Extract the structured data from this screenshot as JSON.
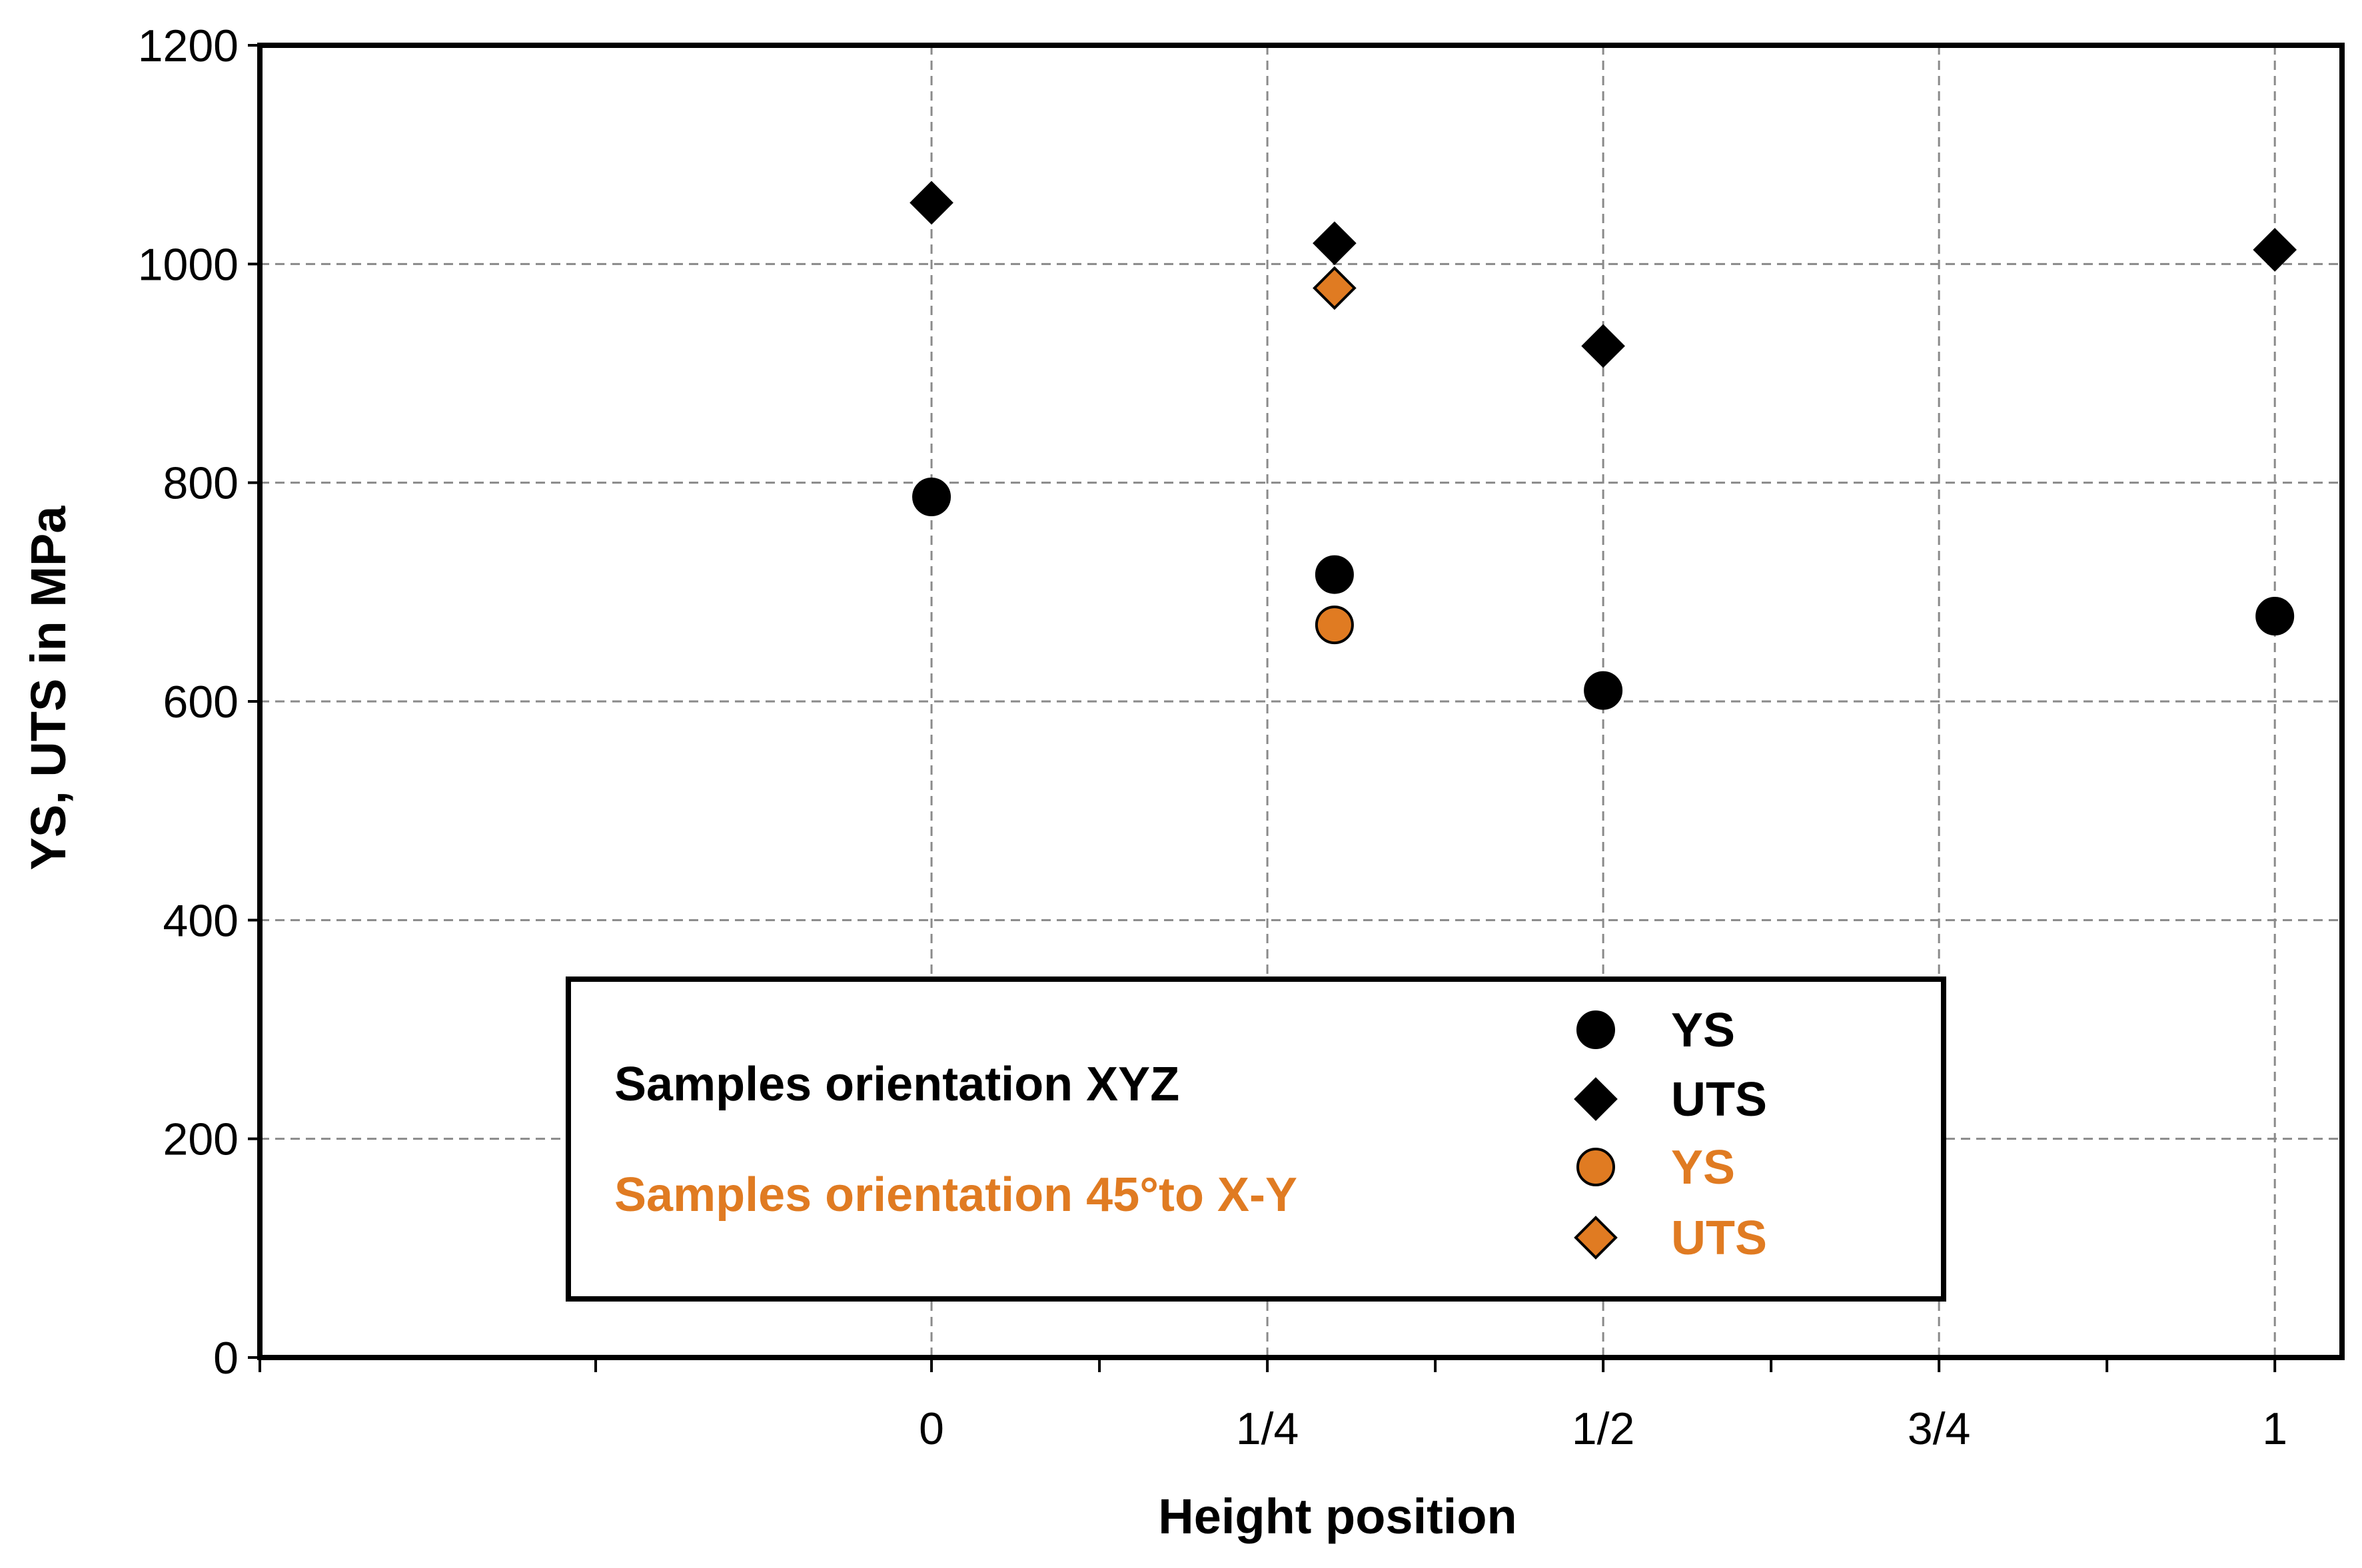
{
  "chart_data": {
    "type": "scatter",
    "title": "",
    "xlabel": "Height position",
    "ylabel": "YS, UTS in MPa",
    "xlim": [
      -0.5,
      1.05
    ],
    "ylim": [
      0,
      1200
    ],
    "grid": true,
    "x_ticks": [
      {
        "value": 0,
        "label": "0"
      },
      {
        "value": 0.25,
        "label": "1/4"
      },
      {
        "value": 0.5,
        "label": "1/2"
      },
      {
        "value": 0.75,
        "label": "3/4"
      },
      {
        "value": 1,
        "label": "1"
      }
    ],
    "y_ticks": [
      {
        "value": 0,
        "label": "0"
      },
      {
        "value": 200,
        "label": "200"
      },
      {
        "value": 400,
        "label": "400"
      },
      {
        "value": 600,
        "label": "600"
      },
      {
        "value": 800,
        "label": "800"
      },
      {
        "value": 1000,
        "label": "1000"
      },
      {
        "value": 1200,
        "label": "1200"
      }
    ],
    "series": [
      {
        "name": "YS",
        "group": "Samples orientation XYZ",
        "marker": "circle",
        "color": "#000000",
        "x": [
          0,
          0.3,
          0.5,
          1
        ],
        "y": [
          787,
          716,
          610,
          678
        ]
      },
      {
        "name": "UTS",
        "group": "Samples orientation XYZ",
        "marker": "diamond",
        "color": "#000000",
        "x": [
          0,
          0.3,
          0.5,
          1
        ],
        "y": [
          1056,
          1019,
          925,
          1013
        ]
      },
      {
        "name": "YS",
        "group": "Samples orientation 45°to X-Y",
        "marker": "circle",
        "color": "#e07b22",
        "x": [
          0.3
        ],
        "y": [
          670
        ]
      },
      {
        "name": "UTS",
        "group": "Samples orientation 45°to X-Y",
        "marker": "diamond",
        "color": "#e07b22",
        "x": [
          0.3
        ],
        "y": [
          978
        ]
      }
    ],
    "legend": {
      "placement": "bottom-center",
      "group_labels": [
        "Samples orientation XYZ",
        "Samples orientation 45°to X-Y"
      ],
      "entries": [
        {
          "label": "YS",
          "marker": "circle",
          "color": "#000000"
        },
        {
          "label": "UTS",
          "marker": "diamond",
          "color": "#000000"
        },
        {
          "label": "YS",
          "marker": "circle",
          "color": "#e07b22"
        },
        {
          "label": "UTS",
          "marker": "diamond",
          "color": "#e07b22"
        }
      ]
    }
  }
}
